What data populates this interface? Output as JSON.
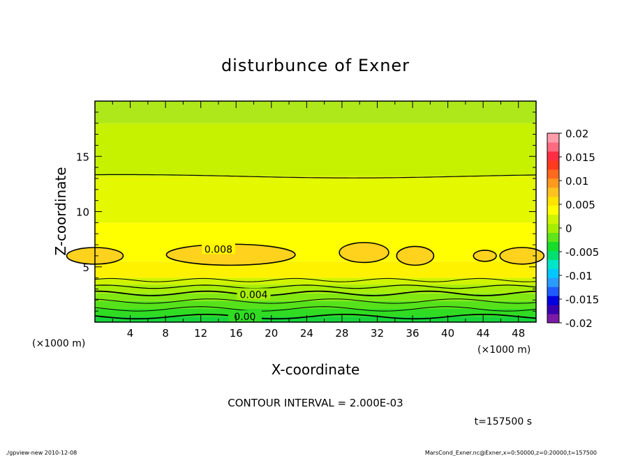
{
  "chart_data": {
    "type": "heatmap",
    "title": "disturbunce of Exner",
    "xlabel": "X-coordinate",
    "ylabel": "Z-coordinate",
    "x_unit": "(×1000 m)",
    "y_unit": "(×1000 m)",
    "xlim": [
      0,
      50
    ],
    "ylim": [
      0,
      20
    ],
    "x_ticks": [
      4,
      8,
      12,
      16,
      20,
      24,
      28,
      32,
      36,
      40,
      44,
      48
    ],
    "y_ticks": [
      5,
      10,
      15
    ],
    "contour_interval_text": "CONTOUR INTERVAL = 2.000E-03",
    "time_text": "t=157500 s",
    "contour_labels": [
      {
        "text": "0.008",
        "x": 14.0,
        "y": 6.6
      },
      {
        "text": "0.004",
        "x": 18.0,
        "y": 2.5
      },
      {
        "text": "0.00",
        "x": 17.0,
        "y": 0.5
      }
    ],
    "colorbar": {
      "labels": [
        "0.02",
        "0.015",
        "0.01",
        "0.005",
        "0",
        "-0.005",
        "-0.01",
        "-0.015",
        "-0.02"
      ],
      "min": -0.02,
      "max": 0.02,
      "colors": [
        "#7a1aa6",
        "#3a00b0",
        "#0000e0",
        "#1f5cff",
        "#2a9cff",
        "#00c8ff",
        "#00e6c8",
        "#00e070",
        "#16dc2a",
        "#5fe51a",
        "#a6ee00",
        "#cdf400",
        "#ffff00",
        "#ffe300",
        "#ffc21e",
        "#ff9a1e",
        "#ff6a1e",
        "#ff3a1e",
        "#ff2e44",
        "#ff6a80",
        "#ff9eaa"
      ]
    }
  },
  "footer": {
    "left": "./gpview-new   2010-12-08",
    "right": "MarsCond_Exner.nc@Exner,x=0:50000,z=0:20000,t=157500"
  }
}
